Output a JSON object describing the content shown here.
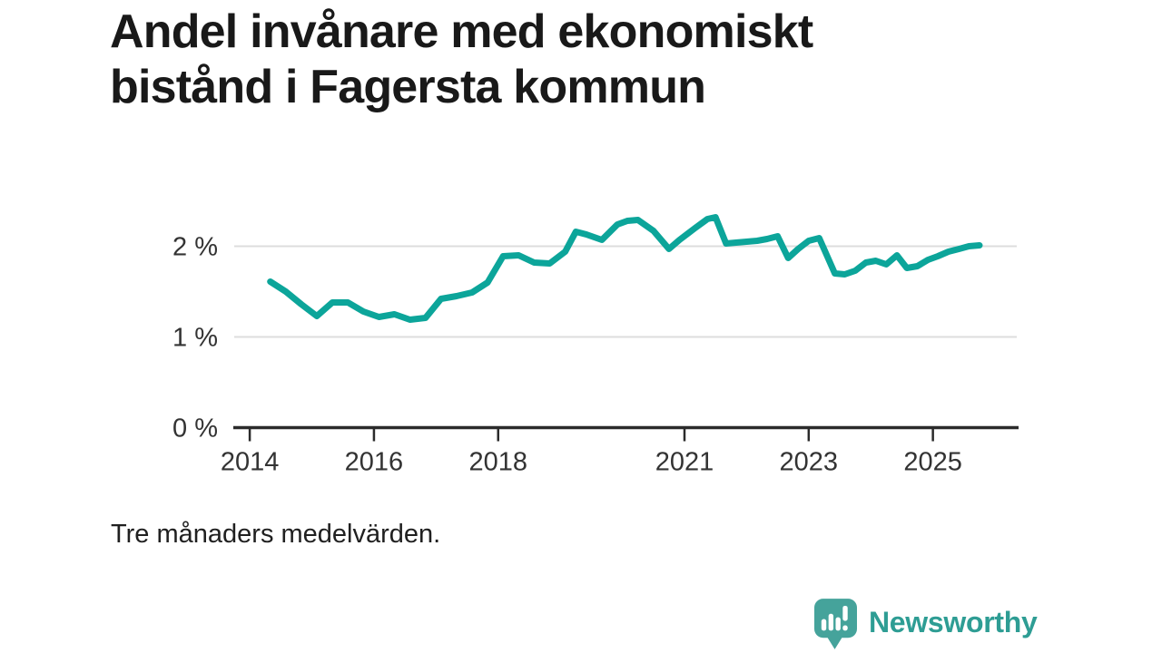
{
  "header": {
    "title_lines": [
      "Andel invånare med ekonomiskt",
      "bistånd i Fagersta kommun"
    ]
  },
  "footnote": "Tre månaders medelvärden.",
  "branding": {
    "name": "Newsworthy",
    "logo_icon": "speech-bubble-bar-chart-exclamation",
    "icon_color": "#45a39b",
    "icon_bar_color": "#ffffff",
    "text_color": "#2e9d94"
  },
  "colors": {
    "background": "#ffffff",
    "title": "#191919",
    "line": "#0ca59a",
    "grid": "#dddddd",
    "axis": "#2b2b2b",
    "tick_label": "#333333"
  },
  "chart_data": {
    "type": "line",
    "title": "Andel invånare med ekonomiskt bistånd i Fagersta kommun",
    "subtitle": "Tre månaders medelvärden.",
    "xlabel": "",
    "ylabel": "",
    "unit": "%",
    "grid": "horizontal",
    "legend": "none",
    "x_range": [
      2013.75,
      2026.35
    ],
    "y_range": [
      0,
      2.4
    ],
    "x_ticks": [
      {
        "value": 2014,
        "label": "2014"
      },
      {
        "value": 2016,
        "label": "2016"
      },
      {
        "value": 2018,
        "label": "2018"
      },
      {
        "value": 2021,
        "label": "2021"
      },
      {
        "value": 2023,
        "label": "2023"
      },
      {
        "value": 2025,
        "label": "2025"
      }
    ],
    "y_ticks": [
      {
        "value": 0,
        "label": "0 %"
      },
      {
        "value": 1,
        "label": "1 %"
      },
      {
        "value": 2,
        "label": "2 %"
      }
    ],
    "series": [
      {
        "name": "Andel invånare med ekonomiskt bistånd",
        "color": "#0ca59a",
        "points": [
          [
            2014.33,
            1.61
          ],
          [
            2014.58,
            1.5
          ],
          [
            2014.83,
            1.36
          ],
          [
            2015.08,
            1.23
          ],
          [
            2015.33,
            1.38
          ],
          [
            2015.58,
            1.38
          ],
          [
            2015.83,
            1.28
          ],
          [
            2016.08,
            1.22
          ],
          [
            2016.33,
            1.25
          ],
          [
            2016.58,
            1.19
          ],
          [
            2016.83,
            1.21
          ],
          [
            2017.08,
            1.42
          ],
          [
            2017.33,
            1.45
          ],
          [
            2017.58,
            1.49
          ],
          [
            2017.83,
            1.6
          ],
          [
            2018.08,
            1.89
          ],
          [
            2018.33,
            1.9
          ],
          [
            2018.58,
            1.82
          ],
          [
            2018.83,
            1.81
          ],
          [
            2019.08,
            1.94
          ],
          [
            2019.25,
            2.16
          ],
          [
            2019.42,
            2.13
          ],
          [
            2019.67,
            2.07
          ],
          [
            2019.92,
            2.24
          ],
          [
            2020.08,
            2.28
          ],
          [
            2020.25,
            2.29
          ],
          [
            2020.5,
            2.17
          ],
          [
            2020.75,
            1.97
          ],
          [
            2020.92,
            2.07
          ],
          [
            2021.17,
            2.2
          ],
          [
            2021.37,
            2.3
          ],
          [
            2021.5,
            2.32
          ],
          [
            2021.67,
            2.03
          ],
          [
            2021.83,
            2.04
          ],
          [
            2022.0,
            2.05
          ],
          [
            2022.17,
            2.06
          ],
          [
            2022.33,
            2.08
          ],
          [
            2022.5,
            2.11
          ],
          [
            2022.67,
            1.87
          ],
          [
            2022.83,
            1.97
          ],
          [
            2023.0,
            2.06
          ],
          [
            2023.17,
            2.09
          ],
          [
            2023.42,
            1.7
          ],
          [
            2023.58,
            1.69
          ],
          [
            2023.75,
            1.73
          ],
          [
            2023.92,
            1.82
          ],
          [
            2024.08,
            1.84
          ],
          [
            2024.25,
            1.8
          ],
          [
            2024.42,
            1.9
          ],
          [
            2024.58,
            1.76
          ],
          [
            2024.75,
            1.78
          ],
          [
            2024.92,
            1.85
          ],
          [
            2025.08,
            1.89
          ],
          [
            2025.25,
            1.94
          ],
          [
            2025.42,
            1.97
          ],
          [
            2025.58,
            2.0
          ],
          [
            2025.75,
            2.01
          ]
        ]
      }
    ]
  }
}
